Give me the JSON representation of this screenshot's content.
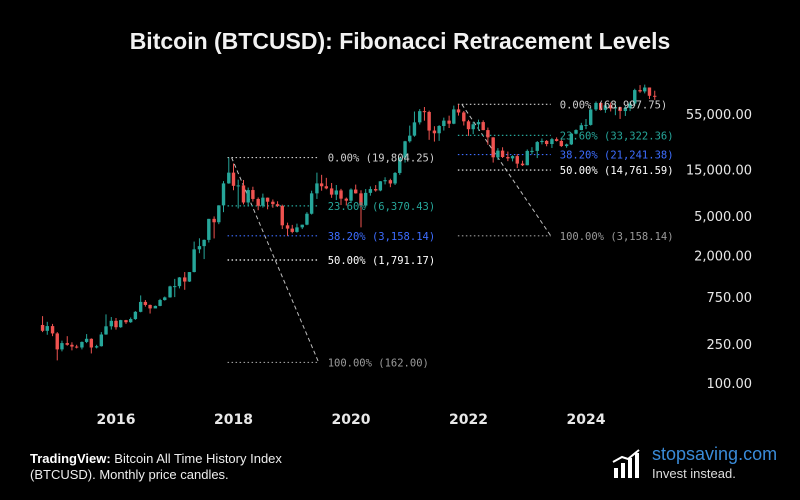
{
  "title": "Bitcoin (BTCUSD): Fibonacci Retracement Levels",
  "source": {
    "brand": "TradingView:",
    "text": " Bitcoin All Time History Index (BTCUSD). Monthly price candles."
  },
  "brand": {
    "name_a": "stopsaving",
    "name_b": ".com",
    "tagline": "Invest instead.",
    "icon": "bar-chart-logo-icon"
  },
  "colors": {
    "up": "#26a69a",
    "down": "#ef5350",
    "level_0": "#cfcfcf",
    "level_236": "#26a69a",
    "level_382": "#3d6dff",
    "level_50": "#ffffff",
    "level_100": "#9a9a9a",
    "diagonal": "#bdbdbd"
  },
  "chart_data": {
    "type": "candlestick",
    "scale": "log",
    "title": "Bitcoin (BTCUSD): Fibonacci Retracement Levels",
    "y_ticks": [
      55000,
      15000,
      5000,
      2000,
      750,
      250,
      100
    ],
    "y_tick_labels": [
      "55,000.00",
      "15,000.00",
      "5,000.00",
      "2,000.00",
      "750.00",
      "250.00",
      "100.00"
    ],
    "x_ticks": [
      "2016",
      "2018",
      "2020",
      "2022",
      "2024"
    ],
    "x_tick_years": [
      2016,
      2018,
      2020,
      2022,
      2024
    ],
    "fib_sets": [
      {
        "start_year": 2017.95,
        "end_year": 2019.45,
        "levels": [
          {
            "ratio": "0.00%",
            "price": 19804.25,
            "label": "0.00% (19,804.25)",
            "key": "level_0"
          },
          {
            "ratio": "23.60%",
            "price": 6370.43,
            "label": "23.60% (6,370.43)",
            "key": "level_236"
          },
          {
            "ratio": "38.20%",
            "price": 3158.14,
            "label": "38.20% (3,158.14)",
            "key": "level_382"
          },
          {
            "ratio": "50.00%",
            "price": 1791.17,
            "label": "50.00% (1,791.17)",
            "key": "level_50"
          },
          {
            "ratio": "100.00%",
            "price": 162.0,
            "label": "100.00% (162.00)",
            "key": "level_100"
          }
        ]
      },
      {
        "start_year": 2021.87,
        "end_year": 2023.4,
        "levels": [
          {
            "ratio": "0.00%",
            "price": 68997.75,
            "label": "0.00% (68,997.75)",
            "key": "level_0"
          },
          {
            "ratio": "23.60%",
            "price": 33322.36,
            "label": "23.60% (33,322.36)",
            "key": "level_236"
          },
          {
            "ratio": "38.20%",
            "price": 21241.38,
            "label": "38.20% (21,241.38)",
            "key": "level_382"
          },
          {
            "ratio": "50.00%",
            "price": 14761.59,
            "label": "50.00% (14,761.59)",
            "key": "level_50"
          },
          {
            "ratio": "100.00%",
            "price": 3158.14,
            "label": "100.00% (3,158.14)",
            "key": "level_100"
          }
        ]
      }
    ],
    "candles": [
      {
        "t": 2014.75,
        "o": 390,
        "h": 480,
        "l": 330,
        "c": 340
      },
      {
        "t": 2014.83,
        "o": 340,
        "h": 420,
        "l": 310,
        "c": 380
      },
      {
        "t": 2014.92,
        "o": 380,
        "h": 400,
        "l": 300,
        "c": 320
      },
      {
        "t": 2015.0,
        "o": 320,
        "h": 330,
        "l": 170,
        "c": 220
      },
      {
        "t": 2015.08,
        "o": 220,
        "h": 270,
        "l": 210,
        "c": 255
      },
      {
        "t": 2015.17,
        "o": 255,
        "h": 300,
        "l": 240,
        "c": 245
      },
      {
        "t": 2015.25,
        "o": 245,
        "h": 260,
        "l": 215,
        "c": 235
      },
      {
        "t": 2015.33,
        "o": 235,
        "h": 245,
        "l": 225,
        "c": 230
      },
      {
        "t": 2015.42,
        "o": 230,
        "h": 265,
        "l": 220,
        "c": 262
      },
      {
        "t": 2015.5,
        "o": 262,
        "h": 315,
        "l": 255,
        "c": 282
      },
      {
        "t": 2015.58,
        "o": 282,
        "h": 285,
        "l": 200,
        "c": 230
      },
      {
        "t": 2015.67,
        "o": 230,
        "h": 245,
        "l": 225,
        "c": 237
      },
      {
        "t": 2015.75,
        "o": 237,
        "h": 330,
        "l": 235,
        "c": 312
      },
      {
        "t": 2015.83,
        "o": 312,
        "h": 500,
        "l": 310,
        "c": 378
      },
      {
        "t": 2015.92,
        "o": 378,
        "h": 470,
        "l": 350,
        "c": 430
      },
      {
        "t": 2016.0,
        "o": 430,
        "h": 460,
        "l": 350,
        "c": 370
      },
      {
        "t": 2016.08,
        "o": 370,
        "h": 440,
        "l": 365,
        "c": 437
      },
      {
        "t": 2016.17,
        "o": 437,
        "h": 440,
        "l": 400,
        "c": 416
      },
      {
        "t": 2016.25,
        "o": 416,
        "h": 465,
        "l": 410,
        "c": 448
      },
      {
        "t": 2016.33,
        "o": 448,
        "h": 540,
        "l": 440,
        "c": 531
      },
      {
        "t": 2016.42,
        "o": 531,
        "h": 780,
        "l": 525,
        "c": 670
      },
      {
        "t": 2016.5,
        "o": 670,
        "h": 700,
        "l": 600,
        "c": 624
      },
      {
        "t": 2016.58,
        "o": 624,
        "h": 630,
        "l": 510,
        "c": 575
      },
      {
        "t": 2016.67,
        "o": 575,
        "h": 615,
        "l": 590,
        "c": 610
      },
      {
        "t": 2016.75,
        "o": 610,
        "h": 720,
        "l": 605,
        "c": 700
      },
      {
        "t": 2016.83,
        "o": 700,
        "h": 760,
        "l": 690,
        "c": 745
      },
      {
        "t": 2016.92,
        "o": 745,
        "h": 980,
        "l": 740,
        "c": 965
      },
      {
        "t": 2017.0,
        "o": 965,
        "h": 1150,
        "l": 750,
        "c": 970
      },
      {
        "t": 2017.08,
        "o": 970,
        "h": 1200,
        "l": 920,
        "c": 1190
      },
      {
        "t": 2017.17,
        "o": 1190,
        "h": 1350,
        "l": 890,
        "c": 1080
      },
      {
        "t": 2017.25,
        "o": 1080,
        "h": 1350,
        "l": 1070,
        "c": 1350
      },
      {
        "t": 2017.33,
        "o": 1350,
        "h": 2760,
        "l": 1340,
        "c": 2300
      },
      {
        "t": 2017.42,
        "o": 2300,
        "h": 2980,
        "l": 2100,
        "c": 2480
      },
      {
        "t": 2017.5,
        "o": 2480,
        "h": 2900,
        "l": 1830,
        "c": 2870
      },
      {
        "t": 2017.58,
        "o": 2870,
        "h": 4700,
        "l": 2700,
        "c": 4700
      },
      {
        "t": 2017.67,
        "o": 4700,
        "h": 4980,
        "l": 2970,
        "c": 4340
      },
      {
        "t": 2017.75,
        "o": 4340,
        "h": 6470,
        "l": 4150,
        "c": 6450
      },
      {
        "t": 2017.83,
        "o": 6450,
        "h": 11400,
        "l": 5500,
        "c": 10800
      },
      {
        "t": 2017.92,
        "o": 10800,
        "h": 19800,
        "l": 10700,
        "c": 13900
      },
      {
        "t": 2018.0,
        "o": 13900,
        "h": 17200,
        "l": 9200,
        "c": 10200
      },
      {
        "t": 2018.08,
        "o": 10200,
        "h": 11800,
        "l": 6000,
        "c": 10300
      },
      {
        "t": 2018.17,
        "o": 10300,
        "h": 11700,
        "l": 6600,
        "c": 6900
      },
      {
        "t": 2018.25,
        "o": 6900,
        "h": 9800,
        "l": 6400,
        "c": 9240
      },
      {
        "t": 2018.33,
        "o": 9240,
        "h": 9990,
        "l": 7050,
        "c": 7500
      },
      {
        "t": 2018.42,
        "o": 7500,
        "h": 7770,
        "l": 5760,
        "c": 6390
      },
      {
        "t": 2018.5,
        "o": 6390,
        "h": 8500,
        "l": 6120,
        "c": 7730
      },
      {
        "t": 2018.58,
        "o": 7730,
        "h": 7760,
        "l": 5880,
        "c": 7030
      },
      {
        "t": 2018.67,
        "o": 7030,
        "h": 7400,
        "l": 6090,
        "c": 6630
      },
      {
        "t": 2018.75,
        "o": 6630,
        "h": 7100,
        "l": 6200,
        "c": 6370
      },
      {
        "t": 2018.83,
        "o": 6370,
        "h": 6560,
        "l": 3700,
        "c": 4040
      },
      {
        "t": 2018.92,
        "o": 4040,
        "h": 4300,
        "l": 3150,
        "c": 3740
      },
      {
        "t": 2019.0,
        "o": 3740,
        "h": 4080,
        "l": 3350,
        "c": 3460
      },
      {
        "t": 2019.08,
        "o": 3460,
        "h": 4200,
        "l": 3400,
        "c": 3850
      },
      {
        "t": 2019.17,
        "o": 3850,
        "h": 4100,
        "l": 3700,
        "c": 4100
      },
      {
        "t": 2019.25,
        "o": 4100,
        "h": 5500,
        "l": 4050,
        "c": 5300
      },
      {
        "t": 2019.33,
        "o": 5300,
        "h": 9100,
        "l": 5200,
        "c": 8550
      },
      {
        "t": 2019.42,
        "o": 8550,
        "h": 13900,
        "l": 7500,
        "c": 10800
      },
      {
        "t": 2019.5,
        "o": 10800,
        "h": 13200,
        "l": 9100,
        "c": 10100
      },
      {
        "t": 2019.58,
        "o": 10100,
        "h": 12300,
        "l": 9400,
        "c": 9600
      },
      {
        "t": 2019.67,
        "o": 9600,
        "h": 10900,
        "l": 7700,
        "c": 8300
      },
      {
        "t": 2019.75,
        "o": 8300,
        "h": 10400,
        "l": 7300,
        "c": 9150
      },
      {
        "t": 2019.83,
        "o": 9150,
        "h": 9500,
        "l": 6500,
        "c": 7550
      },
      {
        "t": 2019.92,
        "o": 7550,
        "h": 7750,
        "l": 6430,
        "c": 7200
      },
      {
        "t": 2020.0,
        "o": 7200,
        "h": 9600,
        "l": 6850,
        "c": 9350
      },
      {
        "t": 2020.08,
        "o": 9350,
        "h": 10500,
        "l": 8500,
        "c": 8550
      },
      {
        "t": 2020.17,
        "o": 8550,
        "h": 9190,
        "l": 3850,
        "c": 6420
      },
      {
        "t": 2020.25,
        "o": 6420,
        "h": 9460,
        "l": 6150,
        "c": 8650
      },
      {
        "t": 2020.33,
        "o": 8650,
        "h": 10060,
        "l": 8100,
        "c": 9450
      },
      {
        "t": 2020.42,
        "o": 9450,
        "h": 10380,
        "l": 8900,
        "c": 9150
      },
      {
        "t": 2020.5,
        "o": 9150,
        "h": 11400,
        "l": 8980,
        "c": 11350
      },
      {
        "t": 2020.58,
        "o": 11350,
        "h": 12470,
        "l": 10550,
        "c": 11650
      },
      {
        "t": 2020.67,
        "o": 11650,
        "h": 12050,
        "l": 9880,
        "c": 10780
      },
      {
        "t": 2020.75,
        "o": 10780,
        "h": 14100,
        "l": 10400,
        "c": 13800
      },
      {
        "t": 2020.83,
        "o": 13800,
        "h": 19800,
        "l": 13200,
        "c": 19700
      },
      {
        "t": 2020.92,
        "o": 19700,
        "h": 29300,
        "l": 17600,
        "c": 29000
      },
      {
        "t": 2021.0,
        "o": 29000,
        "h": 41900,
        "l": 28100,
        "c": 33100
      },
      {
        "t": 2021.08,
        "o": 33100,
        "h": 58300,
        "l": 32300,
        "c": 45200
      },
      {
        "t": 2021.17,
        "o": 45200,
        "h": 61700,
        "l": 43000,
        "c": 58800
      },
      {
        "t": 2021.25,
        "o": 58800,
        "h": 64800,
        "l": 47000,
        "c": 57700
      },
      {
        "t": 2021.33,
        "o": 57700,
        "h": 59500,
        "l": 30000,
        "c": 37300
      },
      {
        "t": 2021.42,
        "o": 37300,
        "h": 41300,
        "l": 28800,
        "c": 35000
      },
      {
        "t": 2021.5,
        "o": 35000,
        "h": 42400,
        "l": 29300,
        "c": 41500
      },
      {
        "t": 2021.58,
        "o": 41500,
        "h": 50500,
        "l": 37300,
        "c": 47100
      },
      {
        "t": 2021.67,
        "o": 47100,
        "h": 52900,
        "l": 39600,
        "c": 43800
      },
      {
        "t": 2021.75,
        "o": 43800,
        "h": 67000,
        "l": 43300,
        "c": 61300
      },
      {
        "t": 2021.83,
        "o": 61300,
        "h": 69000,
        "l": 53000,
        "c": 57000
      },
      {
        "t": 2021.92,
        "o": 57000,
        "h": 59000,
        "l": 42000,
        "c": 46300
      },
      {
        "t": 2022.0,
        "o": 46300,
        "h": 47900,
        "l": 32950,
        "c": 38500
      },
      {
        "t": 2022.08,
        "o": 38500,
        "h": 45800,
        "l": 34300,
        "c": 43200
      },
      {
        "t": 2022.17,
        "o": 43200,
        "h": 48200,
        "l": 37200,
        "c": 45500
      },
      {
        "t": 2022.25,
        "o": 45500,
        "h": 47400,
        "l": 37600,
        "c": 37700
      },
      {
        "t": 2022.33,
        "o": 37700,
        "h": 40000,
        "l": 26700,
        "c": 31800
      },
      {
        "t": 2022.42,
        "o": 31800,
        "h": 31900,
        "l": 17600,
        "c": 19900
      },
      {
        "t": 2022.5,
        "o": 19900,
        "h": 24700,
        "l": 18800,
        "c": 23300
      },
      {
        "t": 2022.58,
        "o": 23300,
        "h": 25200,
        "l": 19600,
        "c": 20050
      },
      {
        "t": 2022.67,
        "o": 20050,
        "h": 22800,
        "l": 18200,
        "c": 19420
      },
      {
        "t": 2022.75,
        "o": 19420,
        "h": 20900,
        "l": 18100,
        "c": 20490
      },
      {
        "t": 2022.83,
        "o": 20490,
        "h": 21480,
        "l": 15480,
        "c": 17170
      },
      {
        "t": 2022.92,
        "o": 17170,
        "h": 18400,
        "l": 16250,
        "c": 16540
      },
      {
        "t": 2023.0,
        "o": 16540,
        "h": 23950,
        "l": 16500,
        "c": 23130
      },
      {
        "t": 2023.08,
        "o": 23130,
        "h": 25250,
        "l": 21350,
        "c": 23150
      },
      {
        "t": 2023.17,
        "o": 23150,
        "h": 29200,
        "l": 19570,
        "c": 28480
      },
      {
        "t": 2023.25,
        "o": 28480,
        "h": 31000,
        "l": 26950,
        "c": 29250
      },
      {
        "t": 2023.33,
        "o": 29250,
        "h": 29850,
        "l": 25800,
        "c": 27200
      },
      {
        "t": 2023.42,
        "o": 27200,
        "h": 31430,
        "l": 24800,
        "c": 30480
      },
      {
        "t": 2023.5,
        "o": 30480,
        "h": 31800,
        "l": 28850,
        "c": 29230
      },
      {
        "t": 2023.58,
        "o": 29230,
        "h": 30200,
        "l": 25400,
        "c": 25930
      },
      {
        "t": 2023.67,
        "o": 25930,
        "h": 27480,
        "l": 24930,
        "c": 26960
      },
      {
        "t": 2023.75,
        "o": 26960,
        "h": 35200,
        "l": 26560,
        "c": 34660
      },
      {
        "t": 2023.83,
        "o": 34660,
        "h": 38400,
        "l": 34100,
        "c": 37720
      },
      {
        "t": 2023.92,
        "o": 37720,
        "h": 44700,
        "l": 37600,
        "c": 42260
      },
      {
        "t": 2024.0,
        "o": 42260,
        "h": 48970,
        "l": 38550,
        "c": 42580
      },
      {
        "t": 2024.08,
        "o": 42580,
        "h": 64000,
        "l": 41880,
        "c": 61200
      },
      {
        "t": 2024.17,
        "o": 61200,
        "h": 73800,
        "l": 59000,
        "c": 71300
      },
      {
        "t": 2024.25,
        "o": 71300,
        "h": 72800,
        "l": 59600,
        "c": 60600
      },
      {
        "t": 2024.33,
        "o": 60600,
        "h": 71900,
        "l": 56550,
        "c": 67500
      },
      {
        "t": 2024.42,
        "o": 67500,
        "h": 71950,
        "l": 58400,
        "c": 62700
      },
      {
        "t": 2024.5,
        "o": 62700,
        "h": 70000,
        "l": 53500,
        "c": 64600
      },
      {
        "t": 2024.58,
        "o": 64600,
        "h": 65000,
        "l": 49000,
        "c": 58970
      },
      {
        "t": 2024.67,
        "o": 58970,
        "h": 66500,
        "l": 52550,
        "c": 63300
      },
      {
        "t": 2024.75,
        "o": 63300,
        "h": 73600,
        "l": 58900,
        "c": 70200
      },
      {
        "t": 2024.83,
        "o": 70200,
        "h": 99500,
        "l": 66800,
        "c": 96400
      },
      {
        "t": 2024.92,
        "o": 96400,
        "h": 108300,
        "l": 90500,
        "c": 93400
      },
      {
        "t": 2025.0,
        "o": 93400,
        "h": 109600,
        "l": 89200,
        "c": 102400
      },
      {
        "t": 2025.08,
        "o": 102400,
        "h": 102500,
        "l": 78200,
        "c": 84300
      },
      {
        "t": 2025.17,
        "o": 84300,
        "h": 95000,
        "l": 76600,
        "c": 82500
      }
    ]
  }
}
